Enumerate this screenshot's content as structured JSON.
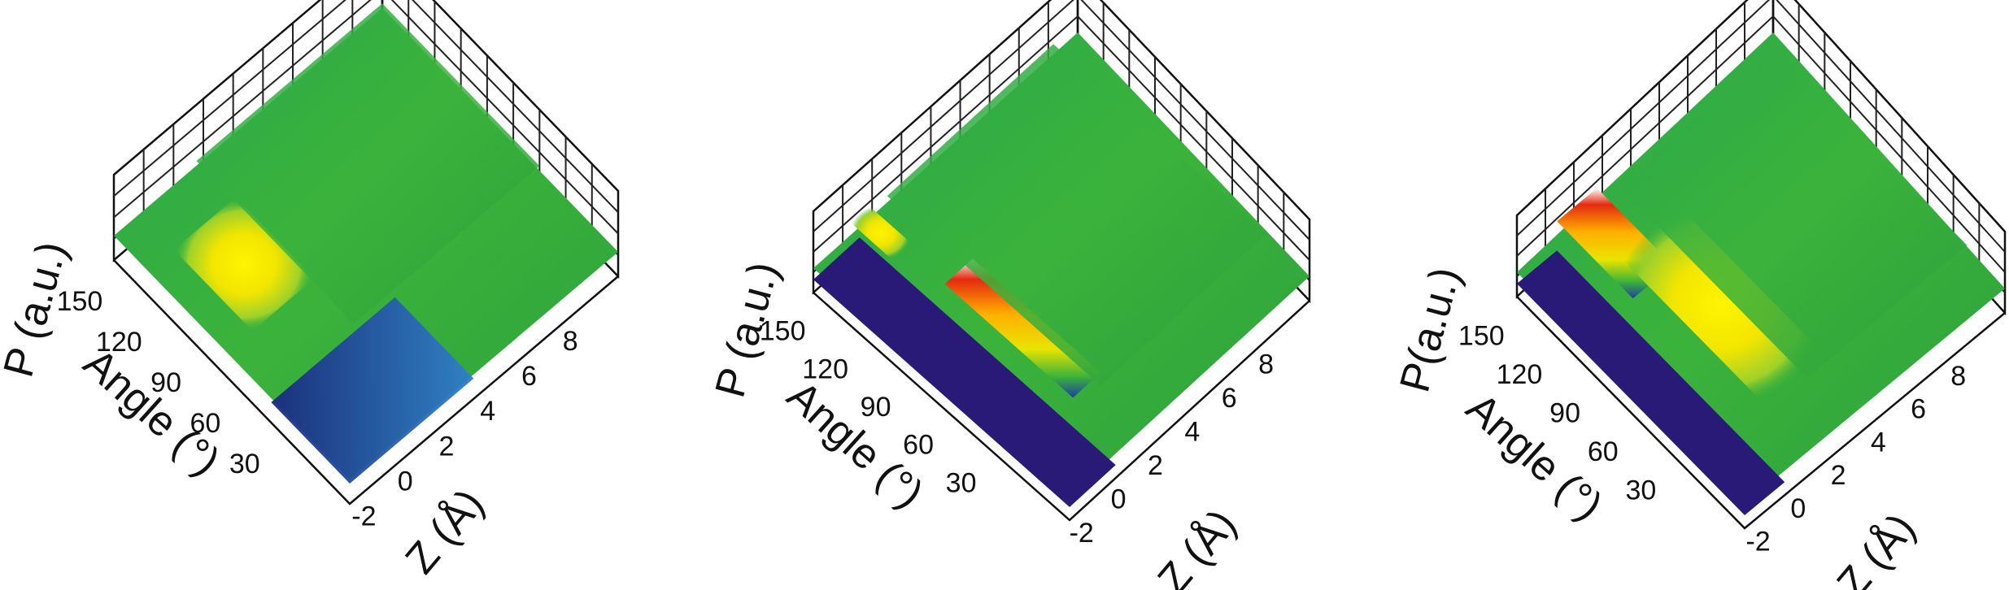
{
  "chart_data": [
    {
      "type": "surface3d",
      "panel": "left",
      "xlabel": "Z (Å)",
      "ylabel": "Angle (°)",
      "zlabel": "P (a.u.)",
      "x_ticks": [
        "-2",
        "0",
        "2",
        "4",
        "6",
        "8"
      ],
      "y_ticks": [
        "30",
        "60",
        "90",
        "120",
        "150"
      ],
      "xlim": [
        -3,
        10
      ],
      "ylim": [
        0,
        180
      ],
      "colormap": [
        "#2a1a78",
        "#1f3fa0",
        "#2f7fc9",
        "#2aa84a",
        "#3bb33b",
        "#e8e400",
        "#ffb000",
        "#e52a10",
        "#ffffff"
      ],
      "features": [
        {
          "name": "blue band low angle",
          "angle": [
            0,
            60
          ],
          "z": [
            -3,
            3
          ],
          "level": 0.25
        },
        {
          "name": "yellow peak",
          "angle": [
            90,
            150
          ],
          "z": [
            -2,
            1
          ],
          "level": 0.7
        },
        {
          "name": "green plateau",
          "angle": [
            60,
            180
          ],
          "z": [
            1,
            10
          ],
          "level": 0.55
        }
      ]
    },
    {
      "type": "surface3d",
      "panel": "middle",
      "xlabel": "Z (Å)",
      "ylabel": "Angle (°)",
      "zlabel": "P (a.u.)",
      "x_ticks": [
        "-2",
        "0",
        "2",
        "4",
        "6",
        "8"
      ],
      "y_ticks": [
        "30",
        "60",
        "90",
        "120",
        "150"
      ],
      "xlim": [
        -3,
        10
      ],
      "ylim": [
        0,
        180
      ],
      "colormap": [
        "#2a1a78",
        "#1f3fa0",
        "#2f7fc9",
        "#2aa84a",
        "#3bb33b",
        "#e8e400",
        "#ffb000",
        "#e52a10",
        "#ffffff"
      ],
      "features": [
        {
          "name": "flat zero region",
          "angle": [
            0,
            180
          ],
          "z": [
            -3,
            -0.5
          ],
          "level": 0.0
        },
        {
          "name": "red ridge",
          "angle": [
            30,
            120
          ],
          "z": [
            -0.5,
            1
          ],
          "level": 1.0
        },
        {
          "name": "yellow crest",
          "angle": [
            150,
            180
          ],
          "z": [
            -1,
            0
          ],
          "level": 0.8
        },
        {
          "name": "green plateau",
          "angle": [
            30,
            180
          ],
          "z": [
            1,
            10
          ],
          "level": 0.55
        }
      ]
    },
    {
      "type": "surface3d",
      "panel": "right",
      "xlabel": "Z (Å)",
      "ylabel": "Angle (°)",
      "zlabel": "P(a.u.)",
      "x_ticks": [
        "-2",
        "0",
        "2",
        "4",
        "6",
        "8"
      ],
      "y_ticks": [
        "30",
        "60",
        "90",
        "120",
        "150"
      ],
      "xlim": [
        -3,
        10
      ],
      "ylim": [
        0,
        180
      ],
      "colormap": [
        "#2a1a78",
        "#1f3fa0",
        "#2f7fc9",
        "#2aa84a",
        "#3bb33b",
        "#e8e400",
        "#ffb000",
        "#e52a10",
        "#ffffff"
      ],
      "features": [
        {
          "name": "flat zero region",
          "angle": [
            0,
            180
          ],
          "z": [
            -3,
            -1
          ],
          "level": 0.0
        },
        {
          "name": "red ridges",
          "angle": [
            120,
            180
          ],
          "z": [
            -1,
            1
          ],
          "level": 1.0
        },
        {
          "name": "yellow diagonal band",
          "angle": [
            30,
            150
          ],
          "z": [
            0,
            3
          ],
          "level": 0.7
        },
        {
          "name": "green plateau",
          "angle": [
            30,
            180
          ],
          "z": [
            2,
            10
          ],
          "level": 0.55
        }
      ]
    }
  ]
}
